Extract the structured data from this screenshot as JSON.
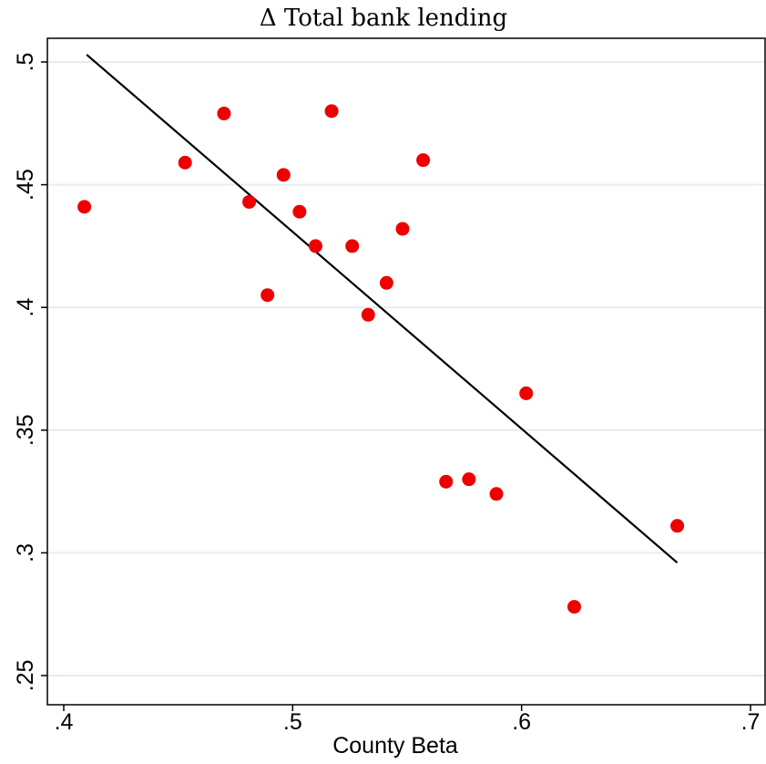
{
  "chart_data": {
    "type": "scatter",
    "title": "Δ Total bank lending",
    "xlabel": "County Beta",
    "ylabel": "",
    "xlim": [
      0.4,
      0.7
    ],
    "ylim": [
      0.25,
      0.5
    ],
    "x_ticks": [
      {
        "value": 0.4,
        "label": ".4"
      },
      {
        "value": 0.5,
        "label": ".5"
      },
      {
        "value": 0.6,
        "label": ".6"
      },
      {
        "value": 0.7,
        "label": ".7"
      }
    ],
    "y_ticks": [
      {
        "value": 0.25,
        "label": ".25"
      },
      {
        "value": 0.3,
        "label": ".3"
      },
      {
        "value": 0.35,
        "label": ".35"
      },
      {
        "value": 0.4,
        "label": ".4"
      },
      {
        "value": 0.45,
        "label": ".45"
      },
      {
        "value": 0.5,
        "label": ".5"
      }
    ],
    "grid": "horizontal",
    "point_color": "#ee0000",
    "line_color": "#000000",
    "points": [
      {
        "x": 0.409,
        "y": 0.441
      },
      {
        "x": 0.453,
        "y": 0.459
      },
      {
        "x": 0.47,
        "y": 0.479
      },
      {
        "x": 0.481,
        "y": 0.443
      },
      {
        "x": 0.489,
        "y": 0.405
      },
      {
        "x": 0.496,
        "y": 0.454
      },
      {
        "x": 0.503,
        "y": 0.439
      },
      {
        "x": 0.51,
        "y": 0.425
      },
      {
        "x": 0.517,
        "y": 0.48
      },
      {
        "x": 0.526,
        "y": 0.425
      },
      {
        "x": 0.533,
        "y": 0.397
      },
      {
        "x": 0.541,
        "y": 0.41
      },
      {
        "x": 0.548,
        "y": 0.432
      },
      {
        "x": 0.557,
        "y": 0.46
      },
      {
        "x": 0.567,
        "y": 0.329
      },
      {
        "x": 0.577,
        "y": 0.33
      },
      {
        "x": 0.589,
        "y": 0.324
      },
      {
        "x": 0.602,
        "y": 0.365
      },
      {
        "x": 0.623,
        "y": 0.278
      },
      {
        "x": 0.668,
        "y": 0.311
      }
    ],
    "fit_line": [
      {
        "x": 0.41,
        "y": 0.503
      },
      {
        "x": 0.668,
        "y": 0.296
      }
    ]
  }
}
